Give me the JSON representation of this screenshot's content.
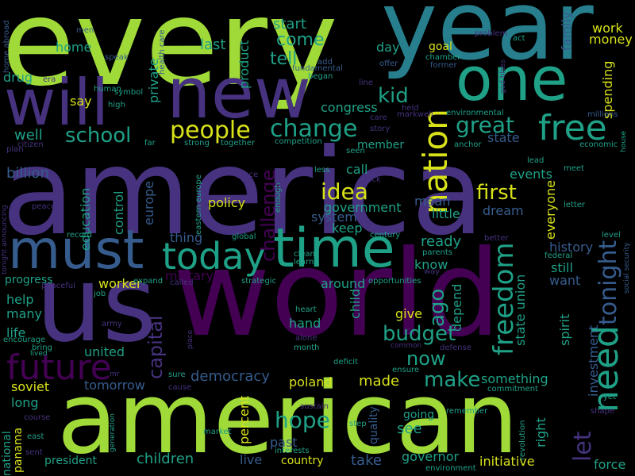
{
  "palette": {
    "lime": "#a0da39",
    "green": "#4ac16d",
    "teal": "#1fa187",
    "cyan": "#277f8e",
    "blue": "#365c8d",
    "indigo": "#46327e",
    "purple": "#440154",
    "yellow": "#d8e219"
  },
  "words": [
    {
      "text": "every",
      "color": "lime"
    },
    {
      "text": "year",
      "color": "cyan"
    },
    {
      "text": "america",
      "color": "indigo"
    },
    {
      "text": "american",
      "color": "lime"
    },
    {
      "text": "world",
      "color": "purple"
    },
    {
      "text": "us",
      "color": "indigo"
    },
    {
      "text": "new",
      "color": "indigo"
    },
    {
      "text": "one",
      "color": "teal"
    },
    {
      "text": "will",
      "color": "indigo"
    },
    {
      "text": "time",
      "color": "teal"
    },
    {
      "text": "must",
      "color": "blue"
    },
    {
      "text": "today",
      "color": "teal"
    },
    {
      "text": "nation",
      "color": "yellow"
    },
    {
      "text": "free",
      "color": "teal"
    },
    {
      "text": "people",
      "color": "yellow"
    },
    {
      "text": "change",
      "color": "teal"
    },
    {
      "text": "future",
      "color": "purple"
    },
    {
      "text": "need",
      "color": "teal"
    },
    {
      "text": "freedom",
      "color": "teal"
    },
    {
      "text": "tonight",
      "color": "blue"
    },
    {
      "text": "great",
      "color": "teal"
    },
    {
      "text": "school",
      "color": "teal"
    },
    {
      "text": "idea",
      "color": "yellow"
    },
    {
      "text": "first",
      "color": "yellow"
    },
    {
      "text": "kid",
      "color": "teal"
    },
    {
      "text": "challenge",
      "color": "purple"
    },
    {
      "text": "budget",
      "color": "teal"
    },
    {
      "text": "hope",
      "color": "teal"
    },
    {
      "text": "make",
      "color": "teal"
    },
    {
      "text": "let",
      "color": "indigo"
    },
    {
      "text": "ago",
      "color": "teal"
    },
    {
      "text": "capital",
      "color": "indigo"
    },
    {
      "text": "now",
      "color": "teal"
    },
    {
      "text": "democracy",
      "color": "blue"
    },
    {
      "text": "come",
      "color": "teal"
    },
    {
      "text": "tell",
      "color": "teal"
    },
    {
      "text": "last",
      "color": "teal"
    },
    {
      "text": "start",
      "color": "teal"
    },
    {
      "text": "home",
      "color": "teal"
    },
    {
      "text": "product",
      "color": "teal"
    },
    {
      "text": "private",
      "color": "teal"
    },
    {
      "text": "drug",
      "color": "teal"
    },
    {
      "text": "say",
      "color": "yellow"
    },
    {
      "text": "well",
      "color": "teal"
    },
    {
      "text": "billion",
      "color": "blue"
    },
    {
      "text": "education",
      "color": "teal"
    },
    {
      "text": "control",
      "color": "teal"
    },
    {
      "text": "europe",
      "color": "blue"
    },
    {
      "text": "policy",
      "color": "yellow"
    },
    {
      "text": "government",
      "color": "teal"
    },
    {
      "text": "system",
      "color": "blue"
    },
    {
      "text": "keep",
      "color": "teal"
    },
    {
      "text": "call",
      "color": "teal"
    },
    {
      "text": "mean",
      "color": "blue"
    },
    {
      "text": "little",
      "color": "teal"
    },
    {
      "text": "congress",
      "color": "teal"
    },
    {
      "text": "member",
      "color": "teal"
    },
    {
      "text": "state",
      "color": "blue"
    },
    {
      "text": "events",
      "color": "teal"
    },
    {
      "text": "dream",
      "color": "blue"
    },
    {
      "text": "everyone",
      "color": "yellow"
    },
    {
      "text": "work",
      "color": "yellow"
    },
    {
      "text": "money",
      "color": "yellow"
    },
    {
      "text": "family",
      "color": "blue"
    },
    {
      "text": "spending",
      "color": "yellow"
    },
    {
      "text": "day",
      "color": "teal"
    },
    {
      "text": "goal",
      "color": "yellow"
    },
    {
      "text": "ready",
      "color": "teal"
    },
    {
      "text": "history",
      "color": "blue"
    },
    {
      "text": "still",
      "color": "teal"
    },
    {
      "text": "want",
      "color": "blue"
    },
    {
      "text": "state union",
      "color": "teal"
    },
    {
      "text": "thing",
      "color": "blue"
    },
    {
      "text": "military",
      "color": "purple"
    },
    {
      "text": "know",
      "color": "teal"
    },
    {
      "text": "around",
      "color": "teal"
    },
    {
      "text": "worker",
      "color": "yellow"
    },
    {
      "text": "progress",
      "color": "teal"
    },
    {
      "text": "help",
      "color": "teal"
    },
    {
      "text": "many",
      "color": "teal"
    },
    {
      "text": "life",
      "color": "teal"
    },
    {
      "text": "hand",
      "color": "teal"
    },
    {
      "text": "give",
      "color": "yellow"
    },
    {
      "text": "depend",
      "color": "teal"
    },
    {
      "text": "child",
      "color": "teal"
    },
    {
      "text": "united",
      "color": "teal"
    },
    {
      "text": "soviet",
      "color": "yellow"
    },
    {
      "text": "tomorrow",
      "color": "blue"
    },
    {
      "text": "something",
      "color": "teal"
    },
    {
      "text": "made",
      "color": "yellow"
    },
    {
      "text": "poland",
      "color": "yellow"
    },
    {
      "text": "long",
      "color": "teal"
    },
    {
      "text": "percent",
      "color": "yellow"
    },
    {
      "text": "see",
      "color": "teal"
    },
    {
      "text": "going",
      "color": "teal"
    },
    {
      "text": "past",
      "color": "blue"
    },
    {
      "text": "live",
      "color": "blue"
    },
    {
      "text": "national",
      "color": "teal"
    },
    {
      "text": "panama",
      "color": "yellow"
    },
    {
      "text": "president",
      "color": "teal"
    },
    {
      "text": "children",
      "color": "teal"
    },
    {
      "text": "country",
      "color": "yellow"
    },
    {
      "text": "take",
      "color": "blue"
    },
    {
      "text": "governor",
      "color": "teal"
    },
    {
      "text": "initiative",
      "color": "yellow"
    },
    {
      "text": "force",
      "color": "teal"
    },
    {
      "text": "right",
      "color": "teal"
    },
    {
      "text": "investment",
      "color": "blue"
    },
    {
      "text": "spirit",
      "color": "teal"
    },
    {
      "text": "quality",
      "color": "blue"
    },
    {
      "text": "health care",
      "color": "blue"
    },
    {
      "text": "home abroad",
      "color": "blue"
    },
    {
      "text": "men",
      "color": "blue"
    },
    {
      "text": "speak",
      "color": "blue"
    },
    {
      "text": "fundamental",
      "color": "blue"
    },
    {
      "text": "add",
      "color": "blue"
    },
    {
      "text": "offer",
      "color": "blue"
    },
    {
      "text": "former",
      "color": "blue"
    },
    {
      "text": "chamber",
      "color": "teal"
    },
    {
      "text": "problem",
      "color": "indigo"
    },
    {
      "text": "god bless",
      "color": "indigo"
    },
    {
      "text": "act",
      "color": "teal"
    },
    {
      "text": "began",
      "color": "teal"
    },
    {
      "text": "human",
      "color": "teal"
    },
    {
      "text": "symbol",
      "color": "teal"
    },
    {
      "text": "high",
      "color": "teal"
    },
    {
      "text": "era",
      "color": "indigo"
    },
    {
      "text": "line",
      "color": "indigo"
    },
    {
      "text": "held",
      "color": "indigo"
    },
    {
      "text": "care",
      "color": "indigo"
    },
    {
      "text": "markwell",
      "color": "indigo"
    },
    {
      "text": "environmental",
      "color": "teal"
    },
    {
      "text": "millions",
      "color": "blue"
    },
    {
      "text": "story",
      "color": "indigo"
    },
    {
      "text": "strong",
      "color": "teal"
    },
    {
      "text": "together",
      "color": "teal"
    },
    {
      "text": "far",
      "color": "teal"
    },
    {
      "text": "citizen",
      "color": "indigo"
    },
    {
      "text": "plan",
      "color": "indigo"
    },
    {
      "text": "competition",
      "color": "teal"
    },
    {
      "text": "seen",
      "color": "teal"
    },
    {
      "text": "anchor",
      "color": "teal"
    },
    {
      "text": "economic",
      "color": "teal"
    },
    {
      "text": "house",
      "color": "teal"
    },
    {
      "text": "eastern europe",
      "color": "teal"
    },
    {
      "text": "face",
      "color": "indigo"
    },
    {
      "text": "less",
      "color": "teal"
    },
    {
      "text": "back",
      "color": "indigo"
    },
    {
      "text": "lead",
      "color": "teal"
    },
    {
      "text": "meet",
      "color": "teal"
    },
    {
      "text": "peace",
      "color": "indigo"
    },
    {
      "text": "enough",
      "color": "teal"
    },
    {
      "text": "letter",
      "color": "teal"
    },
    {
      "text": "record",
      "color": "teal"
    },
    {
      "text": "global",
      "color": "teal"
    },
    {
      "text": "century",
      "color": "teal"
    },
    {
      "text": "better",
      "color": "indigo"
    },
    {
      "text": "level",
      "color": "teal"
    },
    {
      "text": "tonight announcing",
      "color": "indigo"
    },
    {
      "text": "social security",
      "color": "blue"
    },
    {
      "text": "clean",
      "color": "teal"
    },
    {
      "text": "learn",
      "color": "teal"
    },
    {
      "text": "parents",
      "color": "teal"
    },
    {
      "text": "federal",
      "color": "teal"
    },
    {
      "text": "way",
      "color": "indigo"
    },
    {
      "text": "expand",
      "color": "teal"
    },
    {
      "text": "strategic",
      "color": "teal"
    },
    {
      "text": "peaceful",
      "color": "indigo"
    },
    {
      "text": "job",
      "color": "teal"
    },
    {
      "text": "called",
      "color": "indigo"
    },
    {
      "text": "opportunities",
      "color": "teal"
    },
    {
      "text": "army",
      "color": "indigo"
    },
    {
      "text": "heart",
      "color": "teal"
    },
    {
      "text": "encourage",
      "color": "teal"
    },
    {
      "text": "bring",
      "color": "teal"
    },
    {
      "text": "lived",
      "color": "teal"
    },
    {
      "text": "alone",
      "color": "indigo"
    },
    {
      "text": "month",
      "color": "teal"
    },
    {
      "text": "common",
      "color": "indigo"
    },
    {
      "text": "defense",
      "color": "indigo"
    },
    {
      "text": "deficit",
      "color": "teal"
    },
    {
      "text": "mr",
      "color": "indigo"
    },
    {
      "text": "sure",
      "color": "teal"
    },
    {
      "text": "cause",
      "color": "indigo"
    },
    {
      "text": "ensure",
      "color": "teal"
    },
    {
      "text": "commitment",
      "color": "teal"
    },
    {
      "text": "yet",
      "color": "teal"
    },
    {
      "text": "shape",
      "color": "indigo"
    },
    {
      "text": "sustain",
      "color": "indigo"
    },
    {
      "text": "course",
      "color": "indigo"
    },
    {
      "text": "east",
      "color": "teal"
    },
    {
      "text": "generation",
      "color": "teal"
    },
    {
      "text": "market",
      "color": "teal"
    },
    {
      "text": "step",
      "color": "teal"
    },
    {
      "text": "remember",
      "color": "teal"
    },
    {
      "text": "revolution",
      "color": "teal"
    },
    {
      "text": "sent",
      "color": "indigo"
    },
    {
      "text": "interests",
      "color": "teal"
    },
    {
      "text": "environment",
      "color": "teal"
    },
    {
      "text": "place",
      "color": "indigo"
    }
  ]
}
